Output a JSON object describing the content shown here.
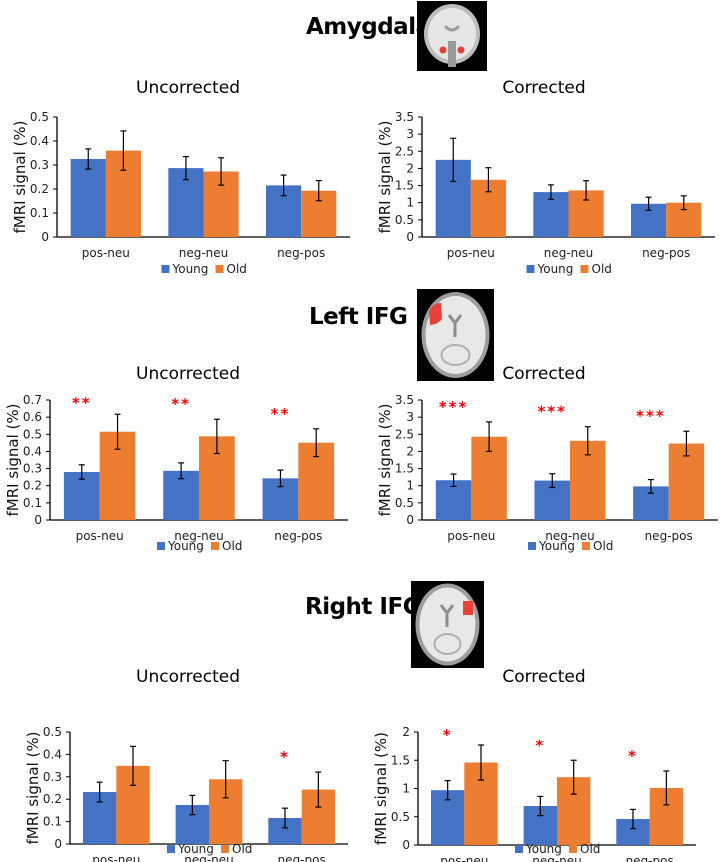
{
  "colors": {
    "young": "#4472C4",
    "old": "#ED7D31",
    "significance": "#FF0000",
    "axis": "#000000"
  },
  "legend": {
    "young": "Young",
    "old": "Old"
  },
  "regions": [
    {
      "title": "Amygdala",
      "brain_image": "coronal-brain-amygdala-highlight"
    },
    {
      "title": "Left IFG",
      "brain_image": "axial-brain-left-ifg-highlight"
    },
    {
      "title": "Right IFG",
      "brain_image": "axial-brain-right-ifg-highlight"
    }
  ],
  "chart_data": [
    {
      "region": "Amygdala",
      "type": "bar",
      "title": "Uncorrected",
      "xlabel": "",
      "ylabel": "fMRI signal (%)",
      "categories": [
        "pos-neu",
        "neg-neu",
        "neg-pos"
      ],
      "ylim": [
        0,
        0.5
      ],
      "yticks": [
        "0",
        "0.1",
        "0.2",
        "0.3",
        "0.4",
        "0.5"
      ],
      "ytick_values": [
        0,
        0.1,
        0.2,
        0.3,
        0.4,
        0.5
      ],
      "series": [
        {
          "name": "Young",
          "values": [
            0.325,
            0.287,
            0.215
          ],
          "errors": [
            0.042,
            0.048,
            0.043
          ]
        },
        {
          "name": "Old",
          "values": [
            0.36,
            0.273,
            0.193
          ],
          "errors": [
            0.082,
            0.057,
            0.042
          ]
        }
      ],
      "significance": [
        "",
        "",
        ""
      ],
      "legend": "bottom",
      "grid": false
    },
    {
      "region": "Amygdala",
      "type": "bar",
      "title": "Corrected",
      "xlabel": "",
      "ylabel": "fMRI signal (%)",
      "categories": [
        "pos-neu",
        "neg-neu",
        "neg-pos"
      ],
      "ylim": [
        0,
        3.5
      ],
      "yticks": [
        "0",
        "0.5",
        "1",
        "1.5",
        "2",
        "2.5",
        "3",
        "3.5"
      ],
      "ytick_values": [
        0,
        0.5,
        1,
        1.5,
        2,
        2.5,
        3,
        3.5
      ],
      "series": [
        {
          "name": "Young",
          "values": [
            2.25,
            1.31,
            0.97
          ],
          "errors": [
            0.63,
            0.21,
            0.19
          ]
        },
        {
          "name": "Old",
          "values": [
            1.67,
            1.36,
            1.0
          ],
          "errors": [
            0.35,
            0.28,
            0.2
          ]
        }
      ],
      "significance": [
        "",
        "",
        ""
      ],
      "legend": "bottom",
      "grid": false
    },
    {
      "region": "Left IFG",
      "type": "bar",
      "title": "Uncorrected",
      "xlabel": "",
      "ylabel": "fMRI signal (%)",
      "categories": [
        "pos-neu",
        "neg-neu",
        "neg-pos"
      ],
      "ylim": [
        0,
        0.7
      ],
      "yticks": [
        "0",
        "0.1",
        "0.2",
        "0.3",
        "0.4",
        "0.5",
        "0.6",
        "0.7"
      ],
      "ytick_values": [
        0,
        0.1,
        0.2,
        0.3,
        0.4,
        0.5,
        0.6,
        0.7
      ],
      "series": [
        {
          "name": "Young",
          "values": [
            0.28,
            0.287,
            0.243
          ],
          "errors": [
            0.042,
            0.046,
            0.048
          ]
        },
        {
          "name": "Old",
          "values": [
            0.515,
            0.488,
            0.451
          ],
          "errors": [
            0.102,
            0.1,
            0.081
          ]
        }
      ],
      "significance": [
        "**",
        "**",
        "**"
      ],
      "legend": "bottom",
      "grid": false
    },
    {
      "region": "Left IFG",
      "type": "bar",
      "title": "Corrected",
      "xlabel": "",
      "ylabel": "fMRI signal (%)",
      "categories": [
        "pos-neu",
        "neg-neu",
        "neg-pos"
      ],
      "ylim": [
        0,
        3.5
      ],
      "yticks": [
        "0",
        "0.5",
        "1",
        "1.5",
        "2",
        "2.5",
        "3",
        "3.5"
      ],
      "ytick_values": [
        0,
        0.5,
        1,
        1.5,
        2,
        2.5,
        3,
        3.5
      ],
      "series": [
        {
          "name": "Young",
          "values": [
            1.16,
            1.15,
            0.98
          ],
          "errors": [
            0.18,
            0.2,
            0.2
          ]
        },
        {
          "name": "Old",
          "values": [
            2.43,
            2.31,
            2.23
          ],
          "errors": [
            0.43,
            0.41,
            0.36
          ]
        }
      ],
      "significance": [
        "***",
        "***",
        "***"
      ],
      "legend": "bottom",
      "grid": false
    },
    {
      "region": "Right IFG",
      "type": "bar",
      "title": "Uncorrected",
      "xlabel": "",
      "ylabel": "fMRI signal (%)",
      "categories": [
        "pos-neu",
        "neg-neu",
        "neg-pos"
      ],
      "ylim": [
        0,
        0.5
      ],
      "yticks": [
        "0",
        "0.1",
        "0.2",
        "0.3",
        "0.4",
        "0.5"
      ],
      "ytick_values": [
        0,
        0.1,
        0.2,
        0.3,
        0.4,
        0.5
      ],
      "series": [
        {
          "name": "Young",
          "values": [
            0.232,
            0.174,
            0.116
          ],
          "errors": [
            0.044,
            0.043,
            0.044
          ]
        },
        {
          "name": "Old",
          "values": [
            0.349,
            0.289,
            0.243
          ],
          "errors": [
            0.087,
            0.083,
            0.078
          ]
        }
      ],
      "significance": [
        "",
        "",
        "*"
      ],
      "legend": "bottom",
      "grid": false
    },
    {
      "region": "Right IFG",
      "type": "bar",
      "title": "Corrected",
      "xlabel": "",
      "ylabel": "fMRI signal (%)",
      "categories": [
        "pos-neu",
        "neg-neu",
        "neg-pos"
      ],
      "ylim": [
        0,
        2
      ],
      "yticks": [
        "0",
        "0.5",
        "1",
        "1.5",
        "2"
      ],
      "ytick_values": [
        0,
        0.5,
        1,
        1.5,
        2
      ],
      "series": [
        {
          "name": "Young",
          "values": [
            0.97,
            0.69,
            0.46
          ],
          "errors": [
            0.17,
            0.17,
            0.17
          ]
        },
        {
          "name": "Old",
          "values": [
            1.46,
            1.2,
            1.01
          ],
          "errors": [
            0.31,
            0.3,
            0.3
          ]
        }
      ],
      "significance": [
        "*",
        "*",
        "*"
      ],
      "legend": "bottom",
      "grid": false
    }
  ]
}
